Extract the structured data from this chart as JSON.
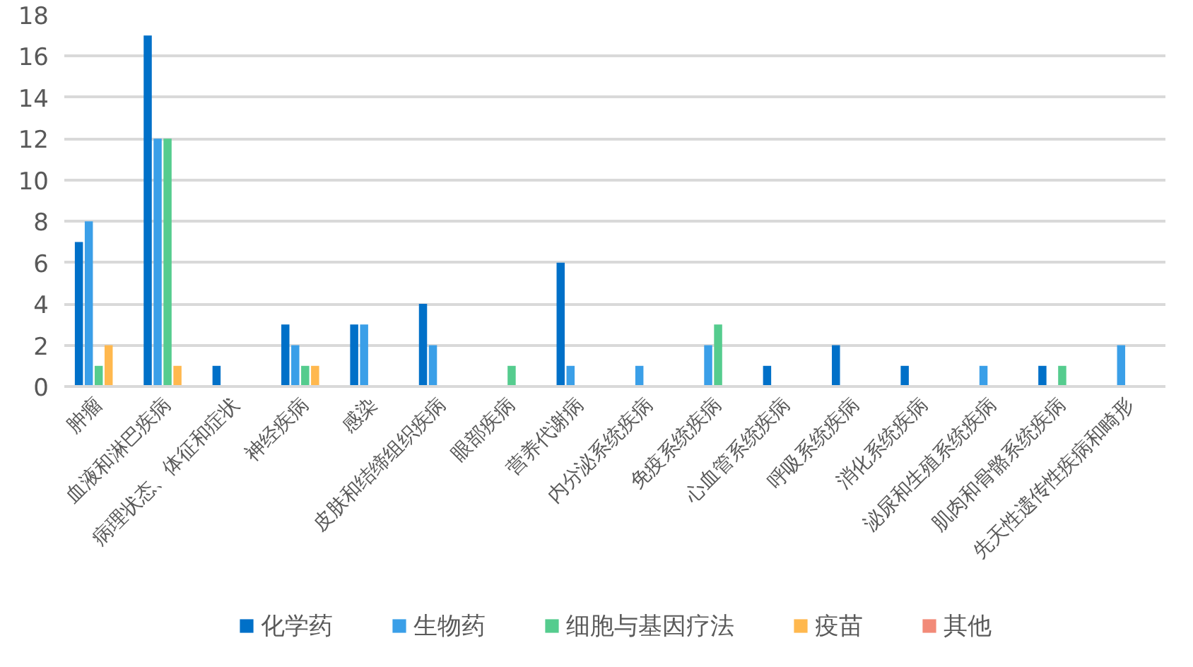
{
  "chart_data": {
    "type": "bar",
    "categories": [
      "肿瘤",
      "血液和淋巴疾病",
      "病理状态、体征和症状",
      "神经疾病",
      "感染",
      "皮肤和结缔组织疾病",
      "眼部疾病",
      "营养代谢病",
      "内分泌系统疾病",
      "免疫系统疾病",
      "心血管系统疾病",
      "呼吸系统疾病",
      "消化系统疾病",
      "泌尿和生殖系统疾病",
      "肌肉和骨骼系统疾病",
      "先天性遗传性疾病和畸形"
    ],
    "series": [
      {
        "name": "化学药",
        "color": "#0070c8",
        "values": [
          7,
          17,
          1,
          3,
          3,
          4,
          0,
          6,
          0,
          0,
          1,
          2,
          1,
          0,
          1,
          0
        ]
      },
      {
        "name": "生物药",
        "color": "#3a9fe8",
        "values": [
          8,
          12,
          0,
          2,
          3,
          2,
          0,
          1,
          1,
          2,
          0,
          0,
          0,
          1,
          0,
          2
        ]
      },
      {
        "name": "细胞与基因疗法",
        "color": "#55cc8e",
        "values": [
          1,
          12,
          0,
          1,
          0,
          0,
          1,
          0,
          0,
          3,
          0,
          0,
          0,
          0,
          1,
          0
        ]
      },
      {
        "name": "疫苗",
        "color": "#ffb84e",
        "values": [
          2,
          1,
          0,
          1,
          0,
          0,
          0,
          0,
          0,
          0,
          0,
          0,
          0,
          0,
          0,
          0
        ]
      },
      {
        "name": "其他",
        "color": "#f28a78",
        "values": [
          0,
          0,
          0,
          0,
          0,
          0,
          0,
          0,
          0,
          0,
          0,
          0,
          0,
          0,
          0,
          0
        ]
      }
    ],
    "ylim": [
      0,
      18
    ],
    "yticks": [
      0,
      2,
      4,
      6,
      8,
      10,
      12,
      14,
      16,
      18
    ],
    "grid": "y",
    "legend": "bottom"
  }
}
